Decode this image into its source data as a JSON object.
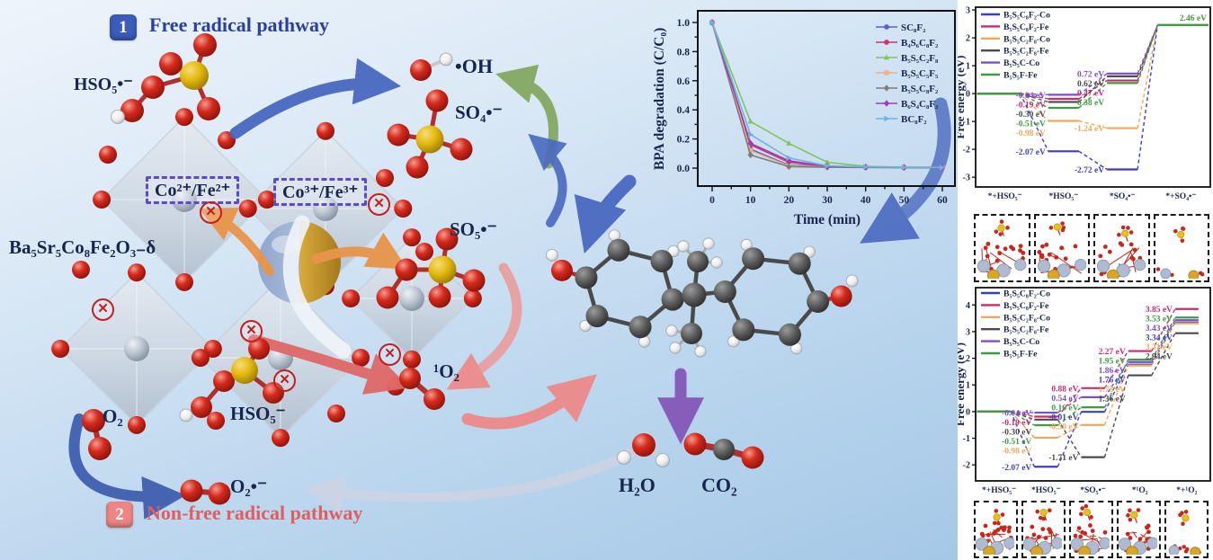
{
  "left_panel": {
    "pathway1_badge": "1",
    "pathway1_label": "Free radical pathway",
    "pathway2_badge": "2",
    "pathway2_label": "Non-free radical pathway",
    "catalyst": "Ba₅Sr₅Co₈Fe₂O₃₋δ",
    "redox_box1": "Co²⁺/Fe²⁺",
    "redox_box2": "Co³⁺/Fe³⁺",
    "species": {
      "hso5_radical": "HSO₅•⁻",
      "oh_radical": "•OH",
      "so4_radical": "SO₄•⁻",
      "so5_radical": "SO₅•⁻",
      "singlet_o2": "¹O₂",
      "o2": "O₂",
      "superoxide": "O₂•⁻",
      "hso5": "HSO₅⁻",
      "h2o": "H₂O",
      "co2": "CO₂"
    },
    "colors": {
      "pathway1_text": "#2b3f9e",
      "pathway1_badge_bg": "#3b5cb8",
      "pathway2_text": "#e05e5e",
      "pathway2_badge_bg": "#ee8585",
      "forbidden_symbol": "#c41e1e",
      "redox_box_border": "#5b4bc4"
    }
  },
  "chart_data": [
    {
      "id": "bpa_degradation",
      "type": "line",
      "title": "",
      "xlabel": "Time (min)",
      "ylabel": "BPA degradation (C/C₀)",
      "x": [
        0,
        10,
        20,
        30,
        40,
        50,
        60
      ],
      "xticks": [
        0,
        10,
        20,
        30,
        40,
        50,
        60
      ],
      "yticks": [
        0.0,
        0.2,
        0.4,
        0.6,
        0.8,
        1.0
      ],
      "xlim": [
        -3,
        63
      ],
      "ylim": [
        -0.05,
        1.08
      ],
      "grid": false,
      "legend_position": "top-right",
      "series": [
        {
          "name": "SC₈F₂",
          "color": "#5a5fc8",
          "marker": "circle",
          "values": [
            1.0,
            0.13,
            0.02,
            0.01,
            0.006,
            0.004,
            0.003
          ]
        },
        {
          "name": "B₄S₆C₈F₂",
          "color": "#c9356f",
          "marker": "circle",
          "values": [
            1.0,
            0.16,
            0.04,
            0.012,
            0.007,
            0.005,
            0.004
          ]
        },
        {
          "name": "B₅S₅C₂F₈",
          "color": "#82c45c",
          "marker": "triangle",
          "values": [
            1.0,
            0.32,
            0.17,
            0.04,
            0.012,
            0.006,
            0.004
          ]
        },
        {
          "name": "B₅S₅C₅F₅",
          "color": "#f2b086",
          "marker": "square",
          "values": [
            1.0,
            0.12,
            0.015,
            0.008,
            0.005,
            0.004,
            0.003
          ]
        },
        {
          "name": "B₅S₅C₈F₂",
          "color": "#7d7d7d",
          "marker": "diamond",
          "values": [
            1.0,
            0.09,
            0.01,
            0.006,
            0.004,
            0.003,
            0.002
          ]
        },
        {
          "name": "B₆S₄C₈F₂",
          "color": "#a43ab0",
          "marker": "diamond",
          "values": [
            1.0,
            0.17,
            0.05,
            0.013,
            0.007,
            0.005,
            0.004
          ]
        },
        {
          "name": "BC₈F₂",
          "color": "#6fb3dc",
          "marker": "triangle-right",
          "values": [
            1.0,
            0.23,
            0.07,
            0.016,
            0.008,
            0.005,
            0.004
          ]
        }
      ]
    },
    {
      "id": "free_energy_radical_pathway",
      "type": "energy-diagram",
      "ylabel": "Free energy (eV)",
      "unit": "eV",
      "yticks": [
        -3,
        -2,
        -1,
        0,
        1,
        2,
        3
      ],
      "ylim": [
        -3.35,
        3.1
      ],
      "stages": [
        "*+HSO₅⁻",
        "*HSO₅⁻",
        "*SO₄•⁻",
        "*+SO₄•⁻"
      ],
      "common_final": 2.46,
      "legend_position": "top-left",
      "series": [
        {
          "name": "B₅S₅C₈F₂-Co",
          "color": "#3a3fbf",
          "values": [
            0,
            -2.07,
            -2.72,
            2.46
          ]
        },
        {
          "name": "B₅S₅C₈F₂-Fe",
          "color": "#cc2a6e",
          "values": [
            0,
            -0.19,
            0.47,
            2.46
          ]
        },
        {
          "name": "B₅S₅C₂F₈-Co",
          "color": "#f0a75a",
          "values": [
            0,
            -0.98,
            -1.24,
            2.46
          ]
        },
        {
          "name": "B₅S₅C₂F₈-Fe",
          "color": "#4a4a4a",
          "values": [
            0,
            -0.3,
            0.62,
            2.46
          ]
        },
        {
          "name": "B₅S₅C-Co",
          "color": "#7a4fc8",
          "values": [
            0,
            -0.04,
            0.72,
            2.46
          ]
        },
        {
          "name": "B₅S₅F-Fe",
          "color": "#3f9b3f",
          "values": [
            0,
            -0.51,
            0.38,
            2.46
          ]
        }
      ],
      "structure_boxes": 4
    },
    {
      "id": "free_energy_nonradical_pathway",
      "type": "energy-diagram",
      "ylabel": "Free energy (eV)",
      "unit": "eV",
      "yticks": [
        -2,
        -1,
        0,
        1,
        2,
        3,
        4
      ],
      "ylim": [
        -2.6,
        4.65
      ],
      "stages": [
        "*+HSO₅⁻",
        "*HSO₅⁻",
        "*SO₅•⁻",
        "*¹O₂",
        "*+¹O₂"
      ],
      "common_final": null,
      "legend_position": "top-left",
      "series": [
        {
          "name": "B₅S₅C₈F₂-Co",
          "color": "#3a3fbf",
          "values": [
            0,
            -2.07,
            -0.01,
            1.76,
            3.34
          ]
        },
        {
          "name": "B₅S₅C₈F₂-Fe",
          "color": "#cc2a6e",
          "values": [
            0,
            -0.19,
            0.88,
            2.27,
            3.85
          ]
        },
        {
          "name": "B₅S₅C₂F₈-Co",
          "color": "#f0a75a",
          "values": [
            0,
            -0.98,
            -0.5,
            1.73,
            3.31
          ]
        },
        {
          "name": "B₅S₅C₂F₈-Fe",
          "color": "#4a4a4a",
          "values": [
            0,
            -0.3,
            -1.71,
            1.36,
            2.94
          ]
        },
        {
          "name": "B₅S₅C-Co",
          "color": "#7a4fc8",
          "values": [
            0,
            -0.04,
            0.54,
            1.86,
            3.43
          ]
        },
        {
          "name": "B₅S₅F-Fe",
          "color": "#3f9b3f",
          "values": [
            0,
            -0.51,
            0.16,
            1.95,
            3.53
          ]
        }
      ],
      "structure_boxes": 5
    }
  ]
}
